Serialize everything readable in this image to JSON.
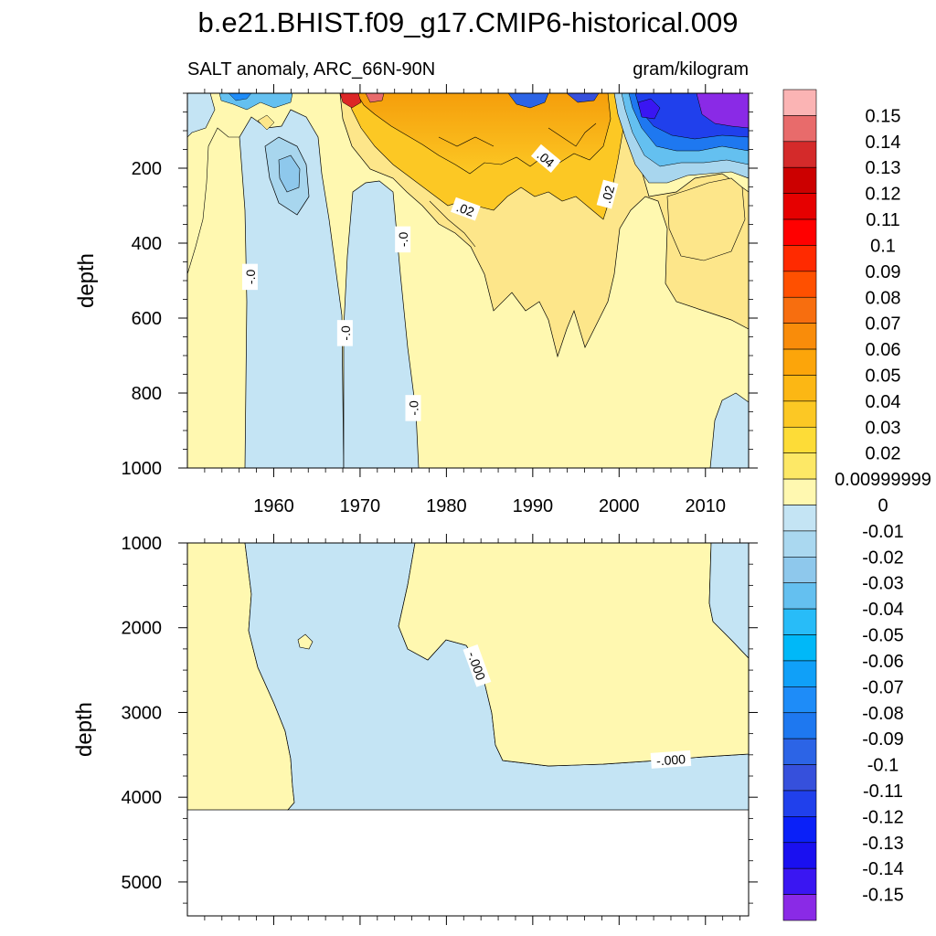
{
  "colors": {
    "fill_pos_light": "#fff8b0",
    "fill_neg_light": "#c4e4f4",
    "fill_neg_mid": "#a8d6ee",
    "fill_pos_mid": "#fde68a",
    "fill_pos_strong": "#fbbf24",
    "fill_orange": "#f59e0b",
    "fill_red": "#dc2626",
    "fill_blue": "#1d4ed8",
    "fill_purple": "#7e22ce"
  },
  "chart_data": {
    "type": "heatmap",
    "title": "b.e21.BHIST.f09_g17.CMIP6-historical.009",
    "subtitle_left": "SALT anomaly, ARC_66N-90N",
    "subtitle_right": "gram/kilogram",
    "xlabel": "",
    "ylabel": "depth",
    "x_tick_labels": [
      "1960",
      "1970",
      "1980",
      "1990",
      "2000",
      "2010"
    ],
    "x_ticks": [
      1960,
      1970,
      1980,
      1990,
      2000,
      2010
    ],
    "xlim": [
      1950,
      2015
    ],
    "panels": [
      {
        "name": "upper",
        "ylim": [
          0,
          1000
        ],
        "y_ticks": [
          200,
          400,
          600,
          800,
          1000
        ],
        "y_tick_labels": [
          "200",
          "400",
          "600",
          "800",
          "1000"
        ],
        "contour_labels": [
          {
            "text": "-.0",
            "x": 1957.3,
            "y": 490,
            "angle": -90
          },
          {
            "text": "-.0",
            "x": 1968.3,
            "y": 640,
            "angle": -90
          },
          {
            "text": "-.0",
            "x": 1975.0,
            "y": 390,
            "angle": -90
          },
          {
            "text": "-.0",
            "x": 1976.2,
            "y": 840,
            "angle": -90
          },
          {
            "text": ".02",
            "x": 1982.2,
            "y": 310,
            "angle": 20
          },
          {
            "text": ".04",
            "x": 1991.5,
            "y": 175,
            "angle": 40
          },
          {
            "text": ".02",
            "x": 1998.7,
            "y": 270,
            "angle": -75
          }
        ]
      },
      {
        "name": "lower",
        "ylim": [
          1000,
          5400
        ],
        "y_ticks": [
          1000,
          2000,
          3000,
          4000,
          5000
        ],
        "y_tick_labels": [
          "1000",
          "2000",
          "3000",
          "4000",
          "5000"
        ],
        "contour_labels": [
          {
            "text": "-.000",
            "x": 1983.5,
            "y": 2450,
            "angle": 70
          },
          {
            "text": "-.000",
            "x": 2006.0,
            "y": 3560,
            "angle": -4
          }
        ]
      }
    ],
    "colorbar": {
      "labels": [
        "0.15",
        "0.14",
        "0.13",
        "0.12",
        "0.11",
        "0.1",
        "0.09",
        "0.08",
        "0.07",
        "0.06",
        "0.05",
        "0.04",
        "0.03",
        "0.02",
        "0.00999999",
        "0",
        "-0.01",
        "-0.02",
        "-0.03",
        "-0.04",
        "-0.05",
        "-0.06",
        "-0.07",
        "-0.08",
        "-0.09",
        "-0.1",
        "-0.11",
        "-0.12",
        "-0.13",
        "-0.14",
        "-0.15"
      ],
      "colors": [
        "#fbb4b4",
        "#e86b6b",
        "#d42a2a",
        "#cc0000",
        "#e60000",
        "#ff0000",
        "#ff2a00",
        "#ff5000",
        "#f76e0f",
        "#f98c0a",
        "#fca50a",
        "#fcb714",
        "#fcc824",
        "#fddc37",
        "#fde866",
        "#fff8b0",
        "#c4e4f4",
        "#aad8f0",
        "#8ec8ec",
        "#64c0f0",
        "#28bcf8",
        "#00b8f8",
        "#10a0f8",
        "#1e8cf8",
        "#1e78f0",
        "#2c64e6",
        "#3650dc",
        "#2040ec",
        "#0a20f8",
        "#1a10f0",
        "#3a16f2",
        "#8a2ae6"
      ]
    }
  }
}
